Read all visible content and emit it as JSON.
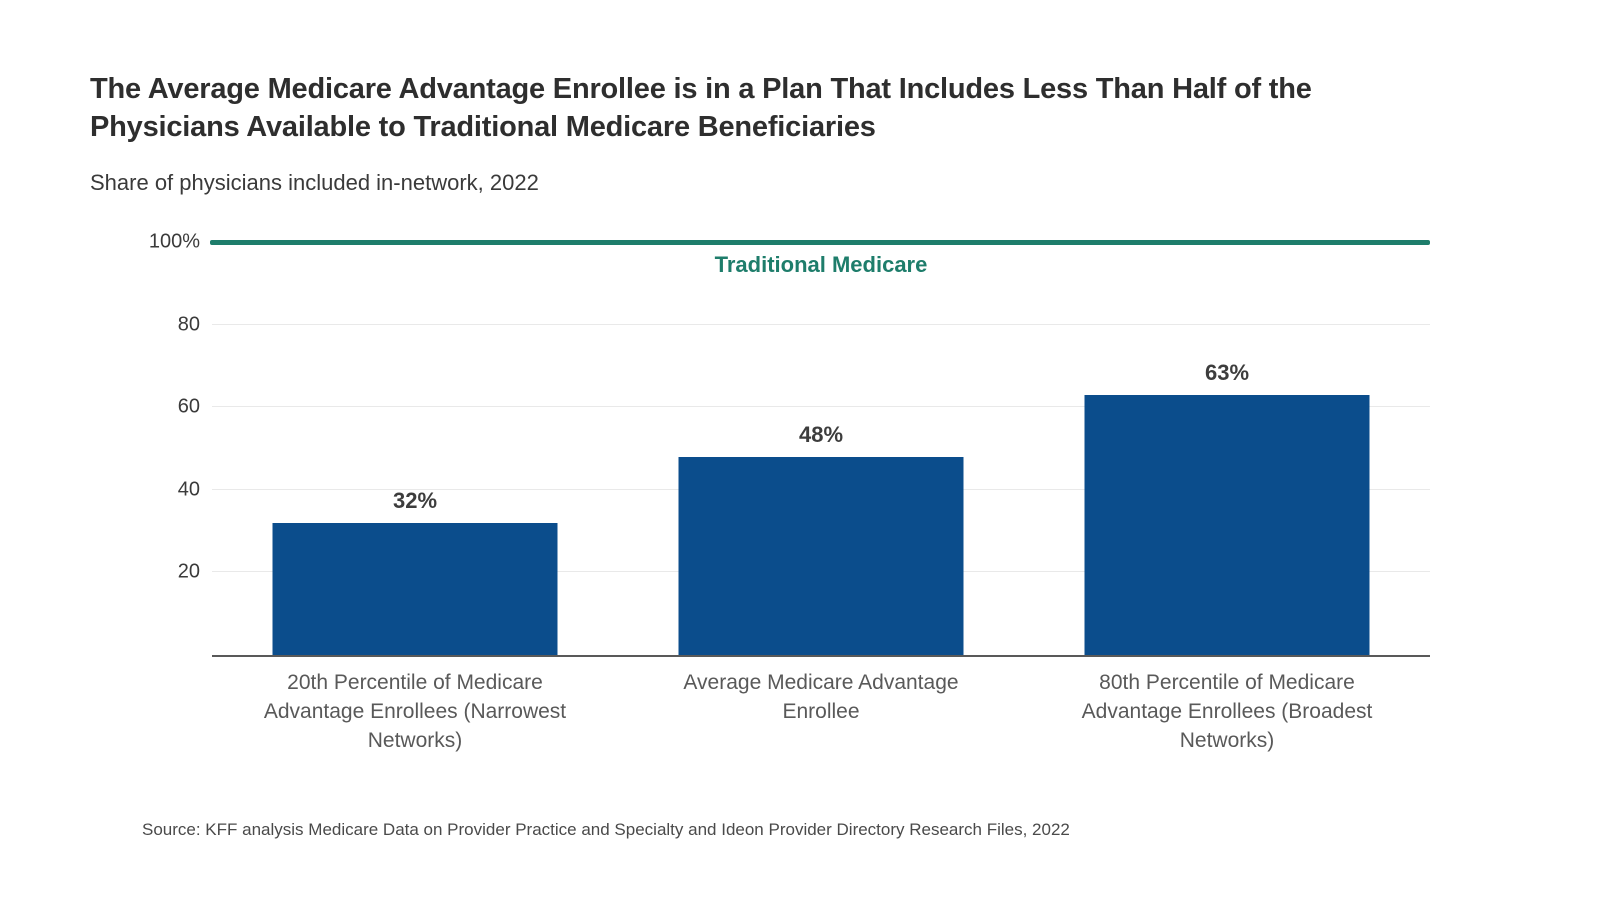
{
  "header": {
    "title": "The Average Medicare Advantage Enrollee is in a Plan That Includes Less Than Half of the Physicians Available to Traditional Medicare Beneficiaries",
    "subtitle": "Share of physicians included in-network, 2022"
  },
  "footer": {
    "source": "Source: KFF analysis Medicare Data on Provider Practice and Specialty and Ideon Provider Directory Research Files, 2022"
  },
  "chart_data": {
    "type": "bar",
    "title": "The Average Medicare Advantage Enrollee is in a Plan That Includes Less Than Half of the Physicians Available to Traditional Medicare Beneficiaries",
    "subtitle": "Share of physicians included in-network, 2022",
    "categories": [
      "20th Percentile of Medicare Advantage Enrollees (Narrowest Networks)",
      "Average Medicare Advantage Enrollee",
      "80th Percentile of Medicare Advantage Enrollees (Broadest Networks)"
    ],
    "values": [
      32,
      48,
      63
    ],
    "value_labels": [
      "32%",
      "48%",
      "63%"
    ],
    "xlabel": "",
    "ylabel": "",
    "ylim": [
      0,
      100
    ],
    "yticks": [
      {
        "value": 100,
        "label": "100%"
      },
      {
        "value": 80,
        "label": "80"
      },
      {
        "value": 60,
        "label": "60"
      },
      {
        "value": 40,
        "label": "40"
      },
      {
        "value": 20,
        "label": "20"
      }
    ],
    "grid": true,
    "legend_position": "none",
    "reference_line": {
      "value": 100,
      "label": "Traditional Medicare"
    },
    "colors": {
      "bar": "#0b4d8c",
      "reference": "#1e7d6b",
      "gridline": "#e9e9e9",
      "axis": "#595959",
      "value_label": "#3d3d3d"
    }
  }
}
